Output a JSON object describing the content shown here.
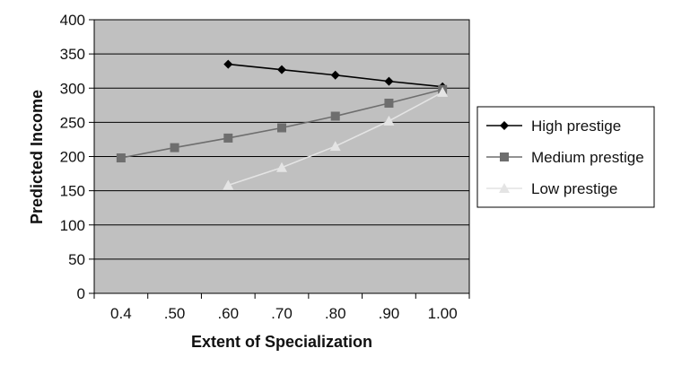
{
  "chart_data": {
    "type": "line",
    "title": "",
    "xlabel": "Extent of Specialization",
    "ylabel": "Predicted Income",
    "categories": [
      "0.4",
      ".50",
      ".60",
      ".70",
      ".80",
      ".90",
      "1.00"
    ],
    "ylim": [
      0,
      400
    ],
    "yticks": [
      "0",
      "50",
      "100",
      "150",
      "200",
      "250",
      "300",
      "350",
      "400"
    ],
    "grid": true,
    "legend_position": "right",
    "plot_background": "#c0c0c0",
    "series": [
      {
        "name": "High prestige",
        "color": "#000000",
        "marker": "diamond",
        "values": [
          null,
          null,
          335,
          327,
          319,
          310,
          302
        ]
      },
      {
        "name": "Medium prestige",
        "color": "#6e6e6e",
        "marker": "square",
        "values": [
          198,
          213,
          227,
          242,
          259,
          278,
          298
        ]
      },
      {
        "name": "Low prestige",
        "color": "#e4e4e4",
        "marker": "triangle",
        "values": [
          null,
          null,
          158,
          184,
          215,
          252,
          294
        ]
      }
    ]
  }
}
